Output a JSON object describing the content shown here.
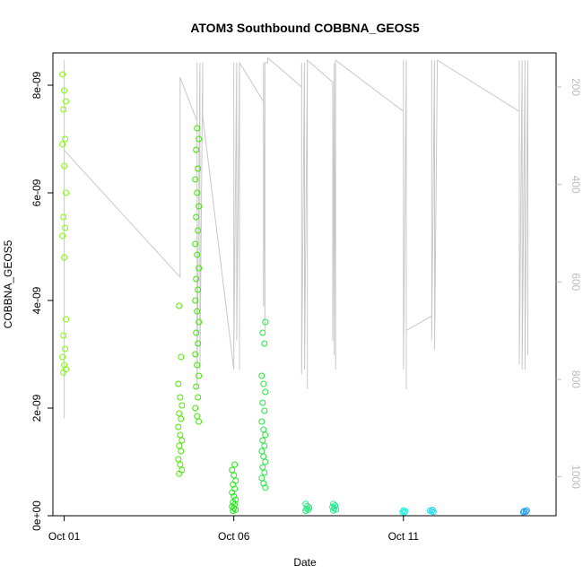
{
  "chart_data": {
    "type": "scatter",
    "title": "ATOM3 Southbound COBBNA_GEOS5",
    "xlabel": "Date",
    "ylabel": "COBBNA_GEOS5",
    "xlim": [
      "2016-09-30T16:00",
      "2016-10-15T12:00"
    ],
    "ylim": [
      0,
      8.6e-09
    ],
    "x_ticks": [
      {
        "value": "2016-10-01",
        "label": "Oct 01"
      },
      {
        "value": "2016-10-06",
        "label": "Oct 06"
      },
      {
        "value": "2016-10-11",
        "label": "Oct 11"
      }
    ],
    "y_ticks": [
      {
        "value": 0,
        "label": "0e+00"
      },
      {
        "value": 2e-09,
        "label": "2e-09"
      },
      {
        "value": 4e-09,
        "label": "4e-09"
      },
      {
        "value": 6e-09,
        "label": "6e-09"
      },
      {
        "value": 8e-09,
        "label": "8e-09"
      }
    ],
    "y2_ticks": [
      {
        "value": 200,
        "label": "200"
      },
      {
        "value": 400,
        "label": "400"
      },
      {
        "value": 600,
        "label": "600"
      },
      {
        "value": 800,
        "label": "800"
      },
      {
        "value": 1000,
        "label": "1000"
      }
    ],
    "y2lim": [
      1080,
      130
    ],
    "y2_reversed": true,
    "grid": false,
    "legend": "none",
    "marker": "open-circle",
    "series": [
      {
        "color": "#7CFC00",
        "points": [
          [
            "2016-10-01T00:00",
            8.2e-09
          ],
          [
            "2016-10-01T00:00",
            7.9e-09
          ],
          [
            "2016-10-01T00:00",
            7.7e-09
          ],
          [
            "2016-10-01T00:00",
            7.55e-09
          ],
          [
            "2016-10-01T00:00",
            7e-09
          ],
          [
            "2016-10-01T00:00",
            6.9e-09
          ],
          [
            "2016-10-01T00:00",
            6.5e-09
          ],
          [
            "2016-10-01T00:00",
            6e-09
          ],
          [
            "2016-10-01T00:00",
            5.55e-09
          ],
          [
            "2016-10-01T00:00",
            5.35e-09
          ],
          [
            "2016-10-01T00:00",
            5.2e-09
          ],
          [
            "2016-10-01T00:00",
            4.8e-09
          ],
          [
            "2016-10-01T00:00",
            3.65e-09
          ],
          [
            "2016-10-01T00:00",
            3.35e-09
          ],
          [
            "2016-10-01T00:00",
            3.1e-09
          ],
          [
            "2016-10-01T00:00",
            2.95e-09
          ],
          [
            "2016-10-01T00:00",
            2.8e-09
          ],
          [
            "2016-10-01T00:00",
            2.72e-09
          ],
          [
            "2016-10-01T00:00",
            2.66e-09
          ]
        ]
      },
      {
        "color": "#4CE800",
        "points": [
          [
            "2016-10-04T10:00",
            3.9e-09
          ],
          [
            "2016-10-04T10:00",
            2.95e-09
          ],
          [
            "2016-10-04T10:00",
            2.45e-09
          ],
          [
            "2016-10-04T10:00",
            2.2e-09
          ],
          [
            "2016-10-04T10:00",
            2.05e-09
          ],
          [
            "2016-10-04T10:00",
            1.9e-09
          ],
          [
            "2016-10-04T10:00",
            1.8e-09
          ],
          [
            "2016-10-04T10:00",
            1.65e-09
          ],
          [
            "2016-10-04T10:00",
            1.5e-09
          ],
          [
            "2016-10-04T10:00",
            1.4e-09
          ],
          [
            "2016-10-04T10:00",
            1.3e-09
          ],
          [
            "2016-10-04T10:00",
            1.2e-09
          ],
          [
            "2016-10-04T10:00",
            1.05e-09
          ],
          [
            "2016-10-04T10:00",
            9.5e-10
          ],
          [
            "2016-10-04T10:00",
            8.5e-10
          ],
          [
            "2016-10-04T10:00",
            7.8e-10
          ]
        ]
      },
      {
        "color": "#3FE600",
        "points": [
          [
            "2016-10-04T22:00",
            7.2e-09
          ],
          [
            "2016-10-04T22:00",
            7e-09
          ],
          [
            "2016-10-04T22:00",
            6.8e-09
          ],
          [
            "2016-10-04T22:00",
            6.45e-09
          ],
          [
            "2016-10-04T22:00",
            6.25e-09
          ],
          [
            "2016-10-04T22:00",
            6e-09
          ],
          [
            "2016-10-04T22:00",
            5.75e-09
          ],
          [
            "2016-10-04T22:00",
            5.55e-09
          ],
          [
            "2016-10-04T22:00",
            5.3e-09
          ],
          [
            "2016-10-04T22:00",
            5.05e-09
          ],
          [
            "2016-10-04T22:00",
            4.85e-09
          ],
          [
            "2016-10-04T22:00",
            4.6e-09
          ],
          [
            "2016-10-04T22:00",
            4.4e-09
          ],
          [
            "2016-10-04T22:00",
            4.2e-09
          ],
          [
            "2016-10-04T22:00",
            4e-09
          ],
          [
            "2016-10-04T22:00",
            3.8e-09
          ],
          [
            "2016-10-04T22:00",
            3.6e-09
          ],
          [
            "2016-10-04T22:00",
            3.4e-09
          ],
          [
            "2016-10-04T22:00",
            3.2e-09
          ],
          [
            "2016-10-04T22:00",
            3e-09
          ],
          [
            "2016-10-04T22:00",
            2.8e-09
          ],
          [
            "2016-10-04T22:00",
            2.6e-09
          ],
          [
            "2016-10-04T22:00",
            2.4e-09
          ],
          [
            "2016-10-04T22:00",
            2.2e-09
          ],
          [
            "2016-10-04T22:00",
            2e-09
          ],
          [
            "2016-10-04T22:00",
            1.85e-09
          ],
          [
            "2016-10-04T22:00",
            1.75e-09
          ]
        ]
      },
      {
        "color": "#22E81A",
        "points": [
          [
            "2016-10-06T00:00",
            9.5e-10
          ],
          [
            "2016-10-06T00:00",
            8.5e-10
          ],
          [
            "2016-10-06T00:00",
            7.5e-10
          ],
          [
            "2016-10-06T00:00",
            6.5e-10
          ],
          [
            "2016-10-06T00:00",
            5.8e-10
          ],
          [
            "2016-10-06T00:00",
            5e-10
          ],
          [
            "2016-10-06T00:00",
            4.3e-10
          ],
          [
            "2016-10-06T00:00",
            3.6e-10
          ],
          [
            "2016-10-06T00:00",
            3e-10
          ],
          [
            "2016-10-06T00:00",
            2.5e-10
          ],
          [
            "2016-10-06T00:00",
            2.1e-10
          ],
          [
            "2016-10-06T00:00",
            1.7e-10
          ],
          [
            "2016-10-06T00:00",
            1.4e-10
          ],
          [
            "2016-10-06T00:00",
            1.1e-10
          ],
          [
            "2016-10-06T00:00",
            9e-11
          ]
        ]
      },
      {
        "color": "#22E83C",
        "points": [
          [
            "2016-10-06T21:00",
            3.6e-09
          ],
          [
            "2016-10-06T21:00",
            3.4e-09
          ],
          [
            "2016-10-06T21:00",
            3.2e-09
          ],
          [
            "2016-10-06T21:00",
            2.6e-09
          ],
          [
            "2016-10-06T21:00",
            2.45e-09
          ],
          [
            "2016-10-06T21:00",
            2.3e-09
          ],
          [
            "2016-10-06T21:00",
            2.1e-09
          ],
          [
            "2016-10-06T21:00",
            1.95e-09
          ],
          [
            "2016-10-06T21:00",
            1.75e-09
          ],
          [
            "2016-10-06T21:00",
            1.6e-09
          ],
          [
            "2016-10-06T21:00",
            1.5e-09
          ],
          [
            "2016-10-06T21:00",
            1.4e-09
          ],
          [
            "2016-10-06T21:00",
            1.3e-09
          ],
          [
            "2016-10-06T21:00",
            1.2e-09
          ],
          [
            "2016-10-06T21:00",
            1.1e-09
          ],
          [
            "2016-10-06T21:00",
            1e-09
          ],
          [
            "2016-10-06T21:00",
            9e-10
          ],
          [
            "2016-10-06T21:00",
            8e-10
          ],
          [
            "2016-10-06T21:00",
            7e-10
          ],
          [
            "2016-10-06T21:00",
            6e-10
          ],
          [
            "2016-10-06T21:00",
            5.2e-10
          ]
        ]
      },
      {
        "color": "#22E87A",
        "points": [
          [
            "2016-10-08T04:00",
            2.2e-10
          ],
          [
            "2016-10-08T04:00",
            1.8e-10
          ],
          [
            "2016-10-08T04:00",
            1.5e-10
          ],
          [
            "2016-10-08T04:00",
            1.3e-10
          ],
          [
            "2016-10-08T04:00",
            1.1e-10
          ],
          [
            "2016-10-08T04:00",
            9e-11
          ]
        ]
      },
      {
        "color": "#22E88C",
        "points": [
          [
            "2016-10-08T23:00",
            2.2e-10
          ],
          [
            "2016-10-08T23:00",
            1.9e-10
          ],
          [
            "2016-10-08T23:00",
            1.6e-10
          ],
          [
            "2016-10-08T23:00",
            1.4e-10
          ],
          [
            "2016-10-08T23:00",
            1.15e-10
          ],
          [
            "2016-10-08T23:00",
            9.5e-11
          ]
        ]
      },
      {
        "color": "#1CF0E4",
        "points": [
          [
            "2016-10-11T00:00",
            1e-10
          ],
          [
            "2016-10-11T00:00",
            8.5e-11
          ],
          [
            "2016-10-11T00:00",
            7e-11
          ],
          [
            "2016-10-11T00:00",
            6e-11
          ]
        ]
      },
      {
        "color": "#1CD8EE",
        "points": [
          [
            "2016-10-11T20:00",
            1.1e-10
          ],
          [
            "2016-10-11T20:00",
            9.5e-11
          ],
          [
            "2016-10-11T20:00",
            8e-11
          ],
          [
            "2016-10-11T20:00",
            7e-11
          ]
        ]
      },
      {
        "color": "#1C9EEE",
        "points": [
          [
            "2016-10-14T14:00",
            1e-10
          ],
          [
            "2016-10-14T14:00",
            8.5e-11
          ],
          [
            "2016-10-14T14:00",
            7.5e-11
          ],
          [
            "2016-10-14T14:00",
            6.5e-11
          ]
        ]
      }
    ],
    "altitude_series": {
      "axis": "right",
      "color": "#c8c8c8",
      "points": [
        [
          "2016-10-01T00:00",
          145
        ],
        [
          "2016-10-01T00:00",
          880
        ],
        [
          "2016-10-01T00:00",
          330
        ],
        [
          "2016-10-04T10:00",
          590
        ],
        [
          "2016-10-04T10:00",
          560
        ],
        [
          "2016-10-04T10:00",
          180
        ],
        [
          "2016-10-04T22:00",
          270
        ],
        [
          "2016-10-04T22:00",
          150
        ],
        [
          "2016-10-04T22:00",
          820
        ],
        [
          "2016-10-05T00:00",
          150
        ],
        [
          "2016-10-05T00:00",
          780
        ],
        [
          "2016-10-05T02:00",
          150
        ],
        [
          "2016-10-05T02:00",
          260
        ],
        [
          "2016-10-06T00:00",
          780
        ],
        [
          "2016-10-06T00:00",
          150
        ],
        [
          "2016-10-06T00:00",
          750
        ],
        [
          "2016-10-06T02:00",
          150
        ],
        [
          "2016-10-06T02:00",
          720
        ],
        [
          "2016-10-06T04:00",
          150
        ],
        [
          "2016-10-06T04:00",
          780
        ],
        [
          "2016-10-06T04:00",
          150
        ],
        [
          "2016-10-06T21:00",
          230
        ],
        [
          "2016-10-06T21:00",
          650
        ],
        [
          "2016-10-06T21:00",
          150
        ],
        [
          "2016-10-06T22:00",
          700
        ],
        [
          "2016-10-06T22:00",
          150
        ],
        [
          "2016-10-07T00:00",
          150
        ],
        [
          "2016-10-07T00:00",
          140
        ],
        [
          "2016-10-08T00:00",
          200
        ],
        [
          "2016-10-08T00:00",
          150
        ],
        [
          "2016-10-08T00:00",
          790
        ],
        [
          "2016-10-08T02:00",
          150
        ],
        [
          "2016-10-08T02:00",
          780
        ],
        [
          "2016-10-08T04:00",
          150
        ],
        [
          "2016-10-08T04:00",
          820
        ],
        [
          "2016-10-08T04:00",
          145
        ],
        [
          "2016-10-08T22:00",
          190
        ],
        [
          "2016-10-08T22:00",
          720
        ],
        [
          "2016-10-08T23:00",
          150
        ],
        [
          "2016-10-08T23:00",
          750
        ],
        [
          "2016-10-09T00:00",
          150
        ],
        [
          "2016-10-09T00:00",
          780
        ],
        [
          "2016-10-09T00:00",
          145
        ],
        [
          "2016-10-11T00:00",
          250
        ],
        [
          "2016-10-11T00:00",
          145
        ],
        [
          "2016-10-11T00:00",
          780
        ],
        [
          "2016-10-11T02:00",
          145
        ],
        [
          "2016-10-11T02:00",
          820
        ],
        [
          "2016-10-11T02:00",
          700
        ],
        [
          "2016-10-11T20:00",
          670
        ],
        [
          "2016-10-11T20:00",
          145
        ],
        [
          "2016-10-11T20:00",
          720
        ],
        [
          "2016-10-11T22:00",
          145
        ],
        [
          "2016-10-11T22:00",
          740
        ],
        [
          "2016-10-12T00:00",
          145
        ],
        [
          "2016-10-14T10:00",
          250
        ],
        [
          "2016-10-14T10:00",
          145
        ],
        [
          "2016-10-14T10:00",
          770
        ],
        [
          "2016-10-14T12:00",
          145
        ],
        [
          "2016-10-14T12:00",
          780
        ],
        [
          "2016-10-14T14:00",
          145
        ],
        [
          "2016-10-14T14:00",
          780
        ],
        [
          "2016-10-14T16:00",
          145
        ],
        [
          "2016-10-14T16:00",
          750
        ]
      ]
    }
  }
}
